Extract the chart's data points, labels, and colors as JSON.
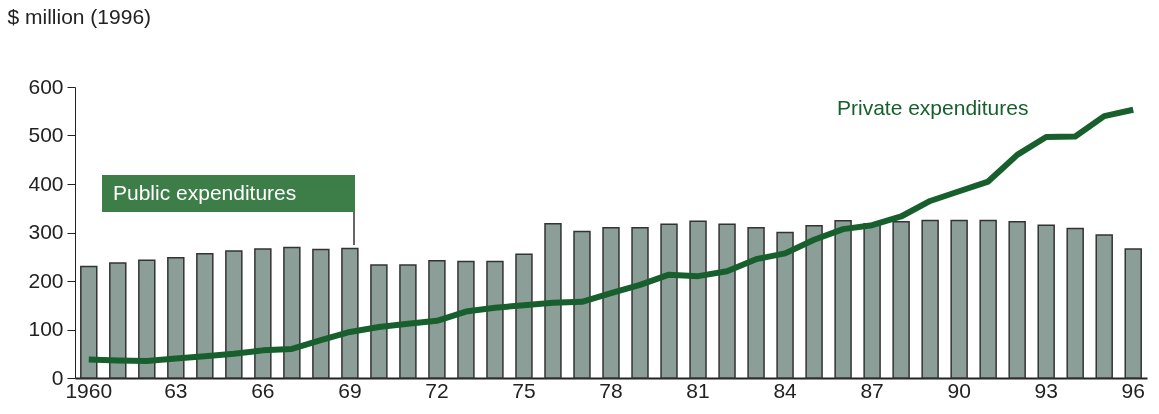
{
  "chart_data": {
    "type": "bar",
    "ylabel": "$ million (1996)",
    "categories": [
      "1960",
      null,
      null,
      "63",
      null,
      null,
      "66",
      null,
      null,
      "69",
      null,
      null,
      "72",
      null,
      null,
      "75",
      null,
      null,
      "78",
      null,
      null,
      "81",
      null,
      null,
      "84",
      null,
      null,
      "87",
      null,
      null,
      "90",
      null,
      null,
      "93",
      null,
      null,
      "96"
    ],
    "series": [
      {
        "name": "Public expenditures",
        "color": "#8c9e98",
        "values": [
          230,
          237,
          243,
          248,
          256,
          262,
          266,
          269,
          265,
          267,
          233,
          233,
          242,
          240,
          240,
          255,
          318,
          302,
          310,
          310,
          317,
          323,
          317,
          310,
          300,
          314,
          324,
          318,
          322,
          325,
          325,
          325,
          322,
          315,
          308,
          295,
          266
        ]
      },
      {
        "name": "Private expenditures",
        "type": "line",
        "color": "#17602e",
        "values": [
          38,
          36,
          35,
          40,
          45,
          50,
          57,
          60,
          78,
          95,
          105,
          112,
          118,
          137,
          145,
          150,
          155,
          157,
          175,
          192,
          213,
          210,
          220,
          245,
          257,
          285,
          307,
          315,
          333,
          365,
          385,
          405,
          460,
          497,
          498,
          540,
          553
        ]
      }
    ],
    "ylim": [
      0,
      600
    ],
    "yticks": [
      0,
      100,
      200,
      300,
      400,
      500,
      600
    ],
    "grid": false
  }
}
